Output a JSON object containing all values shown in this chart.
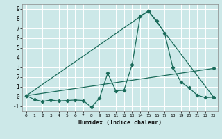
{
  "xlabel": "Humidex (Indice chaleur)",
  "ylabel": "",
  "xlim": [
    -0.5,
    23.5
  ],
  "ylim": [
    -1.5,
    9.5
  ],
  "yticks": [
    -1,
    0,
    1,
    2,
    3,
    4,
    5,
    6,
    7,
    8,
    9
  ],
  "xticks": [
    0,
    1,
    2,
    3,
    4,
    5,
    6,
    7,
    8,
    9,
    10,
    11,
    12,
    13,
    14,
    15,
    16,
    17,
    18,
    19,
    20,
    21,
    22,
    23
  ],
  "background_color": "#cce8e8",
  "grid_color": "#ffffff",
  "line_color": "#1a6b5a",
  "line1_x": [
    0,
    1,
    2,
    3,
    4,
    5,
    6,
    7,
    8,
    9,
    10,
    11,
    12,
    13,
    14,
    15,
    16,
    17,
    18,
    19,
    20,
    21,
    22,
    23
  ],
  "line1_y": [
    0.1,
    -0.3,
    -0.5,
    -0.35,
    -0.45,
    -0.4,
    -0.35,
    -0.4,
    -1.1,
    -0.15,
    2.4,
    0.6,
    0.65,
    3.3,
    8.3,
    8.8,
    7.8,
    6.5,
    3.0,
    1.5,
    0.9,
    0.15,
    -0.1,
    -0.05
  ],
  "line2_x": [
    0,
    15,
    23
  ],
  "line2_y": [
    0.1,
    8.8,
    -0.05
  ],
  "line3_x": [
    0,
    23
  ],
  "line3_y": [
    0.1,
    2.9
  ]
}
